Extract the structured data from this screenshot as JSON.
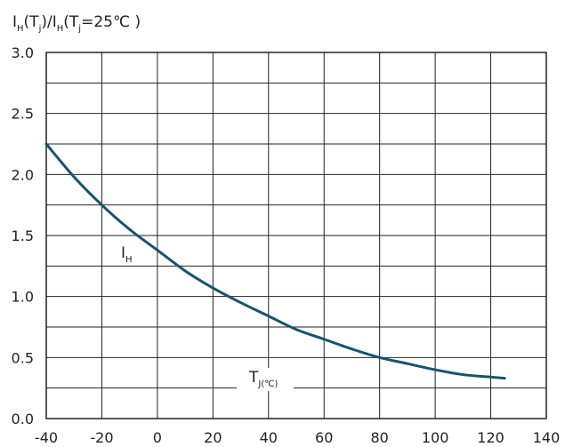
{
  "chart_data": {
    "type": "line",
    "title": "",
    "ylabel": {
      "parts": [
        {
          "text": "I",
          "sub": "H"
        },
        {
          "text": "(T",
          "sub": "j"
        },
        {
          "text": ")/I",
          "sub": "H"
        },
        {
          "text": "(T",
          "sub": "j"
        },
        {
          "text": "=25℃ )",
          "sub": ""
        }
      ]
    },
    "xlabel": {
      "parts": [
        {
          "text": "T",
          "sub": "J(℃)"
        }
      ]
    },
    "xlim": [
      -40,
      140
    ],
    "ylim": [
      0.0,
      3.0
    ],
    "x_ticks": [
      -40,
      -20,
      0,
      20,
      40,
      60,
      80,
      100,
      120,
      140
    ],
    "y_ticks": [
      "0.0",
      "0.5",
      "1.0",
      "1.5",
      "2.0",
      "2.5",
      "3.0"
    ],
    "minor_y_step": 0.25,
    "grid": true,
    "series": [
      {
        "name": "I_H",
        "label": {
          "text": "I",
          "sub": "H"
        },
        "color": "#1a5266",
        "x": [
          -40,
          -30,
          -20,
          -10,
          0,
          10,
          20,
          30,
          40,
          50,
          60,
          70,
          80,
          90,
          100,
          110,
          120,
          125
        ],
        "y": [
          2.25,
          1.98,
          1.75,
          1.55,
          1.38,
          1.21,
          1.07,
          0.95,
          0.84,
          0.73,
          0.65,
          0.57,
          0.5,
          0.45,
          0.4,
          0.36,
          0.34,
          0.33
        ]
      }
    ]
  }
}
